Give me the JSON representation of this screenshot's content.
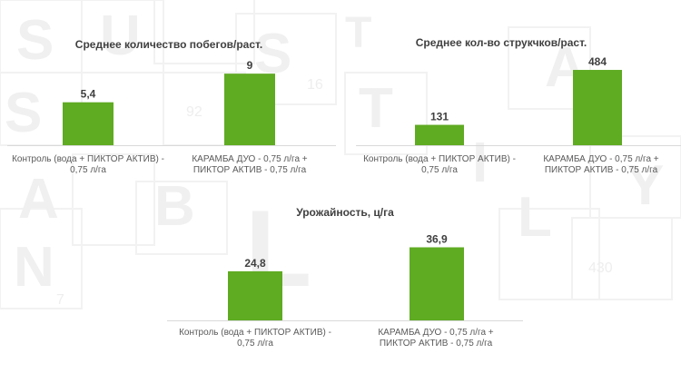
{
  "colors": {
    "bar": "#5FAB22",
    "axis": "#d9d9d9",
    "text": "#404040"
  },
  "chart_data": [
    {
      "type": "bar",
      "title": "Среднее количество побегов/раст.",
      "categories": [
        "Контроль (вода + ПИКТОР АКТИВ) - 0,75 л/га",
        "КАРАМБА ДУО - 0,75 л/га + ПИКТОР АКТИВ - 0,75 л/га"
      ],
      "values": [
        5.4,
        9
      ],
      "value_labels": [
        "5,4",
        "9"
      ],
      "ylim": [
        0,
        10.5
      ]
    },
    {
      "type": "bar",
      "title": "Среднее кол-во струкчков/раст.",
      "categories": [
        "Контроль (вода + ПИКТОР АКТИВ) - 0,75 л/га",
        "КАРАМБА ДУО - 0,75 л/га + ПИКТОР АКТИВ - 0,75 л/га"
      ],
      "values": [
        131,
        484
      ],
      "value_labels": [
        "131",
        "484"
      ],
      "ylim": [
        0,
        560
      ]
    },
    {
      "type": "bar",
      "title": "Урожайность, ц/га",
      "categories": [
        "Контроль (вода + ПИКТОР АКТИВ) - 0,75 л/га",
        "КАРАМБА ДУО - 0,75 л/га + ПИКТОР АКТИВ - 0,75 л/га"
      ],
      "values": [
        24.8,
        36.9
      ],
      "value_labels": [
        "24,8",
        "36,9"
      ],
      "ylim": [
        0,
        44
      ]
    }
  ]
}
